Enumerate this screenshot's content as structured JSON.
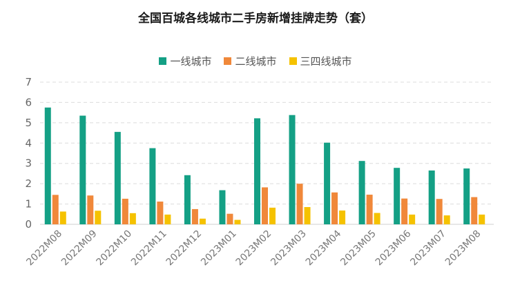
{
  "chart_data": {
    "type": "bar",
    "title": "全国百城各线城市二手房新增挂牌走势（套）",
    "categories": [
      "2022M08",
      "2022M09",
      "2022M10",
      "2022M11",
      "2022M12",
      "2023M01",
      "2023M02",
      "2023M03",
      "2023M04",
      "2023M05",
      "2023M06",
      "2023M07",
      "2023M08"
    ],
    "series": [
      {
        "name": "一线城市",
        "color": "#14a085",
        "values": [
          5.75,
          5.35,
          4.55,
          3.75,
          2.42,
          1.68,
          5.22,
          5.38,
          4.02,
          3.12,
          2.78,
          2.65,
          2.75
        ]
      },
      {
        "name": "二线城市",
        "color": "#f0883a",
        "values": [
          1.45,
          1.42,
          1.26,
          1.12,
          0.75,
          0.52,
          1.82,
          2.0,
          1.57,
          1.46,
          1.27,
          1.25,
          1.34
        ]
      },
      {
        "name": "三四线城市",
        "color": "#f5c200",
        "values": [
          0.63,
          0.67,
          0.55,
          0.48,
          0.28,
          0.22,
          0.82,
          0.85,
          0.68,
          0.56,
          0.48,
          0.44,
          0.48
        ]
      }
    ],
    "ylim": [
      0,
      7
    ],
    "yticks": [
      0,
      1,
      2,
      3,
      4,
      5,
      6,
      7
    ],
    "grid": true,
    "legend_position": "top"
  }
}
